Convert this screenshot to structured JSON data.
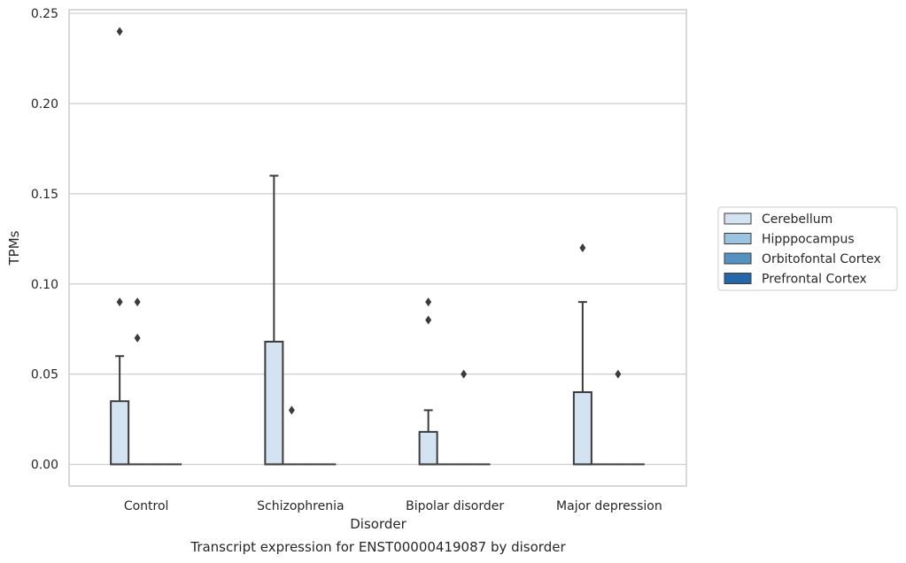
{
  "chart_data": {
    "type": "box",
    "title": "Transcript expression for ENST00000419087 by disorder",
    "xlabel": "Disorder",
    "ylabel": "TPMs",
    "ylim": [
      -0.012,
      0.252
    ],
    "yticks": [
      "0.00",
      "0.05",
      "0.10",
      "0.15",
      "0.20",
      "0.25"
    ],
    "categories": [
      "Control",
      "Schizophrenia",
      "Bipolar disorder",
      "Major depression"
    ],
    "grid": true,
    "legend_position": "right",
    "series": [
      {
        "name": "Cerebellum",
        "color": "#d4e3f2",
        "boxes": [
          {
            "q1": 0,
            "median": 0,
            "q3": 0.035,
            "whisker_low": 0,
            "whisker_high": 0.06,
            "outliers": [
              0.09,
              0.24
            ]
          },
          {
            "q1": 0,
            "median": 0,
            "q3": 0.068,
            "whisker_low": 0,
            "whisker_high": 0.16,
            "outliers": []
          },
          {
            "q1": 0,
            "median": 0,
            "q3": 0.018,
            "whisker_low": 0,
            "whisker_high": 0.03,
            "outliers": [
              0.08,
              0.09
            ]
          },
          {
            "q1": 0,
            "median": 0,
            "q3": 0.04,
            "whisker_low": 0,
            "whisker_high": 0.09,
            "outliers": [
              0.12
            ]
          }
        ]
      },
      {
        "name": "Hipppocampus",
        "color": "#9ac4df",
        "boxes": [
          {
            "q1": 0,
            "median": 0,
            "q3": 0,
            "whisker_low": 0,
            "whisker_high": 0,
            "outliers": [
              0.07,
              0.09
            ]
          },
          {
            "q1": 0,
            "median": 0,
            "q3": 0,
            "whisker_low": 0,
            "whisker_high": 0,
            "outliers": [
              0.03
            ]
          },
          {
            "q1": 0,
            "median": 0,
            "q3": 0,
            "whisker_low": 0,
            "whisker_high": 0,
            "outliers": []
          },
          {
            "q1": 0,
            "median": 0,
            "q3": 0,
            "whisker_low": 0,
            "whisker_high": 0,
            "outliers": []
          }
        ]
      },
      {
        "name": "Orbitofontal Cortex",
        "color": "#5493c1",
        "boxes": [
          {
            "q1": 0,
            "median": 0,
            "q3": 0,
            "whisker_low": 0,
            "whisker_high": 0,
            "outliers": []
          },
          {
            "q1": 0,
            "median": 0,
            "q3": 0,
            "whisker_low": 0,
            "whisker_high": 0,
            "outliers": []
          },
          {
            "q1": 0,
            "median": 0,
            "q3": 0,
            "whisker_low": 0,
            "whisker_high": 0,
            "outliers": [
              0.05
            ]
          },
          {
            "q1": 0,
            "median": 0,
            "q3": 0,
            "whisker_low": 0,
            "whisker_high": 0,
            "outliers": [
              0.05
            ]
          }
        ]
      },
      {
        "name": "Prefrontal Cortex",
        "color": "#2566a8",
        "boxes": [
          {
            "q1": 0,
            "median": 0,
            "q3": 0,
            "whisker_low": 0,
            "whisker_high": 0,
            "outliers": []
          },
          {
            "q1": 0,
            "median": 0,
            "q3": 0,
            "whisker_low": 0,
            "whisker_high": 0,
            "outliers": []
          },
          {
            "q1": 0,
            "median": 0,
            "q3": 0,
            "whisker_low": 0,
            "whisker_high": 0,
            "outliers": []
          },
          {
            "q1": 0,
            "median": 0,
            "q3": 0,
            "whisker_low": 0,
            "whisker_high": 0,
            "outliers": []
          }
        ]
      }
    ]
  }
}
